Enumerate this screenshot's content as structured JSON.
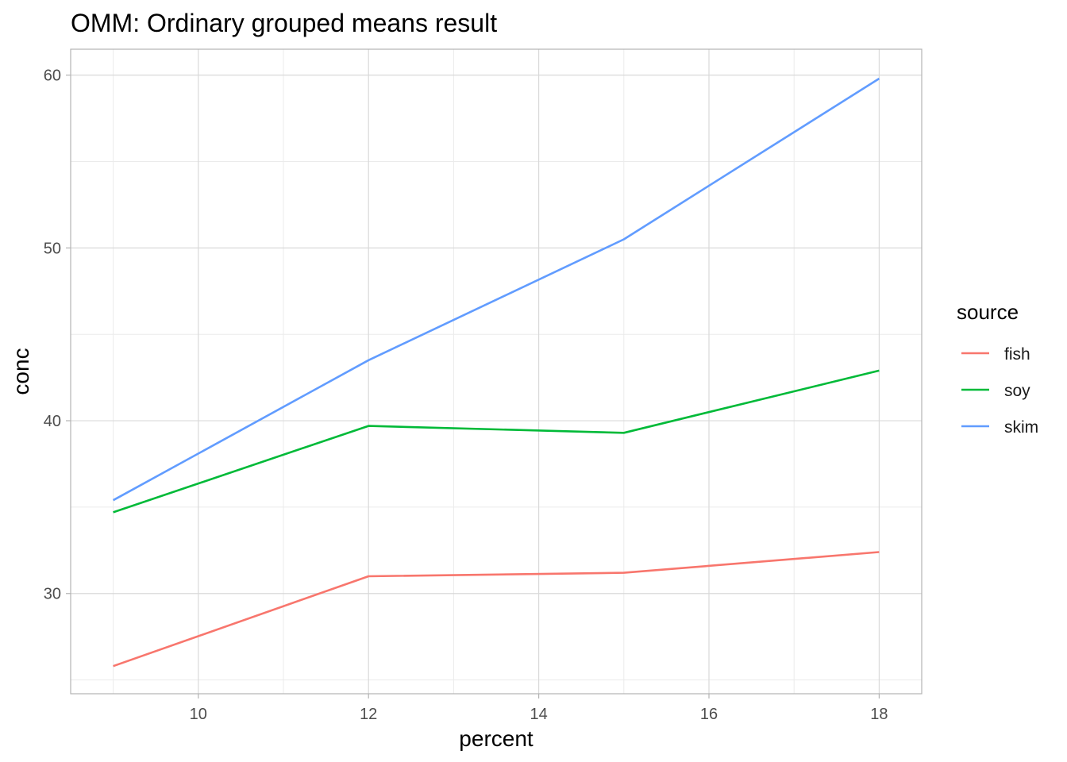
{
  "chart_data": {
    "type": "line",
    "title": "OMM: Ordinary grouped means result",
    "xlabel": "percent",
    "ylabel": "conc",
    "x": [
      9,
      12,
      15,
      18
    ],
    "series": [
      {
        "name": "fish",
        "color": "#F8766D",
        "values": [
          25.8,
          31.0,
          31.2,
          32.4
        ]
      },
      {
        "name": "soy",
        "color": "#00BA38",
        "values": [
          34.7,
          39.7,
          39.3,
          42.9
        ]
      },
      {
        "name": "skim",
        "color": "#619CFF",
        "values": [
          35.4,
          43.5,
          50.5,
          59.8
        ]
      }
    ],
    "xlim": [
      8.5,
      18.5
    ],
    "ylim": [
      24.2,
      61.5
    ],
    "x_ticks": [
      10,
      12,
      14,
      16,
      18
    ],
    "y_ticks": [
      30,
      40,
      50,
      60
    ],
    "x_tick_labels": [
      "10",
      "12",
      "14",
      "16",
      "18"
    ],
    "y_tick_labels": [
      "30",
      "40",
      "50",
      "60"
    ],
    "legend_title": "source",
    "legend_position": "right",
    "grid": true
  }
}
